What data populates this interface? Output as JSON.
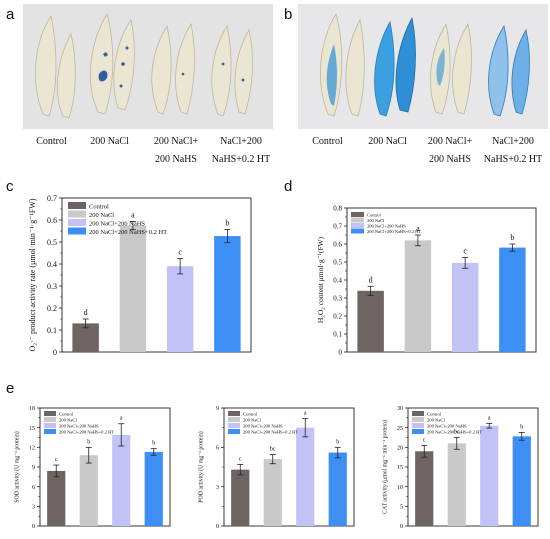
{
  "panels": {
    "a": {
      "letter": "a",
      "labels": [
        {
          "lines": [
            "Control"
          ]
        },
        {
          "lines": [
            "200 NaCl"
          ]
        },
        {
          "lines": [
            "200 NaCl+",
            "200 NaHS"
          ]
        },
        {
          "lines": [
            "NaCl+200",
            "NaHS+0.2 HT"
          ]
        }
      ]
    },
    "b": {
      "letter": "b",
      "labels": [
        {
          "lines": [
            "Control"
          ]
        },
        {
          "lines": [
            "200 NaCl"
          ]
        },
        {
          "lines": [
            "200 NaCl+",
            "200 NaHS"
          ]
        },
        {
          "lines": [
            "NaCl+200",
            "NaHS+0.2 HT"
          ]
        }
      ]
    },
    "c": {
      "letter": "c"
    },
    "d": {
      "letter": "d"
    },
    "e": {
      "letter": "e"
    }
  },
  "colors": {
    "Control": "#6e6462",
    "200 NaCl": "#c9c9c9",
    "200 NaCl+200 NaHS": "#c2c2f7",
    "200 NaCl+200 NaHS+0.2 HT": "#3d8ff5",
    "photo_bg_a": "#e3e3e3",
    "photo_bg_b": "#e7e7ea",
    "leaf_pale": "#e9e4cf",
    "stain_blue_a": "#2e5fa3",
    "stain_blue_b": "#2f8fd6"
  },
  "chart_data": [
    {
      "id": "c",
      "type": "bar",
      "categories": [
        "Control",
        "200 NaCl",
        "200 NaCl+200 NaHS",
        "200 NaCl+200 NaHS+0.2 HT"
      ],
      "legend": [
        "Control",
        "200 NaCl",
        "200 NaCl+200 NaHS",
        "200 NaCl+200 NaHS+0.2 HT"
      ],
      "values": [
        0.13,
        0.575,
        0.39,
        0.527
      ],
      "errors": [
        0.02,
        0.018,
        0.035,
        0.03
      ],
      "letters": [
        "d",
        "a",
        "c",
        "b"
      ],
      "ylabel": "O₂·⁻ product activity rate (μmol·min⁻¹·g⁻¹FW)",
      "ylim": [
        0,
        0.7
      ],
      "yticks": [
        "0",
        "0.1",
        "0.2",
        "0.3",
        "0.4",
        "0.5",
        "0.6",
        "0.7"
      ],
      "legend_position": "top-left"
    },
    {
      "id": "d",
      "type": "bar",
      "categories": [
        "Control",
        "200 NaCl",
        "200 NaCl+200 NaHS",
        "200 NaCl+200 NaHS+0.2 HT"
      ],
      "legend": [
        "Control",
        "200 NaCl",
        "200 NaCl+200 NaHS",
        "200 NaCl+200 NaHS+0.2 HT"
      ],
      "values": [
        0.34,
        0.62,
        0.495,
        0.58
      ],
      "errors": [
        0.025,
        0.03,
        0.03,
        0.02
      ],
      "letters": [
        "d",
        "a",
        "c",
        "b"
      ],
      "ylabel": "H₂O₂ content μmol·g⁻¹(FW)",
      "ylim": [
        0,
        0.8
      ],
      "yticks": [
        "0",
        "0.1",
        "0.2",
        "0.3",
        "0.4",
        "0.5",
        "0.6",
        "0.7",
        "0.8"
      ],
      "legend_position": "top-left"
    },
    {
      "id": "e1",
      "type": "bar",
      "categories": [
        "Control",
        "200 NaCl",
        "200 NaCl+200 NaHS",
        "200 NaCl+200 NaHS+0.2 HT"
      ],
      "legend": [
        "Control",
        "200 NaCl",
        "200 NaCl+200 NaHS",
        "200 NaCl+200 NaHS+0.2 HT"
      ],
      "values": [
        8.4,
        10.8,
        13.9,
        11.3
      ],
      "errors": [
        0.9,
        1.2,
        1.7,
        0.5
      ],
      "letters": [
        "c",
        "b",
        "a",
        "b"
      ],
      "ylabel": "SOD activity (U mg⁻¹ protein)",
      "ylim": [
        0,
        18
      ],
      "yticks": [
        "0",
        "3",
        "6",
        "9",
        "12",
        "15",
        "18"
      ],
      "legend_position": "top-left"
    },
    {
      "id": "e2",
      "type": "bar",
      "categories": [
        "Control",
        "200 NaCl",
        "200 NaCl+200 NaHS",
        "200 NaCl+200 NaHS+0.2 HT"
      ],
      "legend": [
        "Control",
        "200 NaCl",
        "200 NaCl+200 NaHS",
        "200 NaCl+200 NaHS+0.2 HT"
      ],
      "values": [
        4.3,
        5.1,
        7.5,
        5.6
      ],
      "errors": [
        0.4,
        0.35,
        0.7,
        0.4
      ],
      "letters": [
        "c",
        "bc",
        "a",
        "b"
      ],
      "ylabel": "POD activity (U mg⁻¹ protein)",
      "ylim": [
        0,
        9
      ],
      "yticks": [
        "0",
        "3",
        "6",
        "9"
      ],
      "legend_position": "top-left"
    },
    {
      "id": "e3",
      "type": "bar",
      "categories": [
        "Control",
        "200 NaCl",
        "200 NaCl+200 NaHS",
        "200 NaCl+200 NaHS+0.2 HT"
      ],
      "legend": [
        "Control",
        "200 NaCl",
        "200 NaCl+200 NaHS",
        "200 NaCl+200 NaHS+0.2 HT"
      ],
      "values": [
        19.0,
        21.0,
        25.5,
        22.8
      ],
      "errors": [
        1.5,
        1.5,
        0.6,
        1.0
      ],
      "letters": [
        "c",
        "bc",
        "a",
        "b"
      ],
      "ylabel": "CAT activity (μmol mg⁻¹ min⁻¹ protein)",
      "ylim": [
        0,
        30
      ],
      "yticks": [
        "0",
        "5",
        "10",
        "15",
        "20",
        "25",
        "30"
      ],
      "legend_position": "top-left"
    }
  ]
}
